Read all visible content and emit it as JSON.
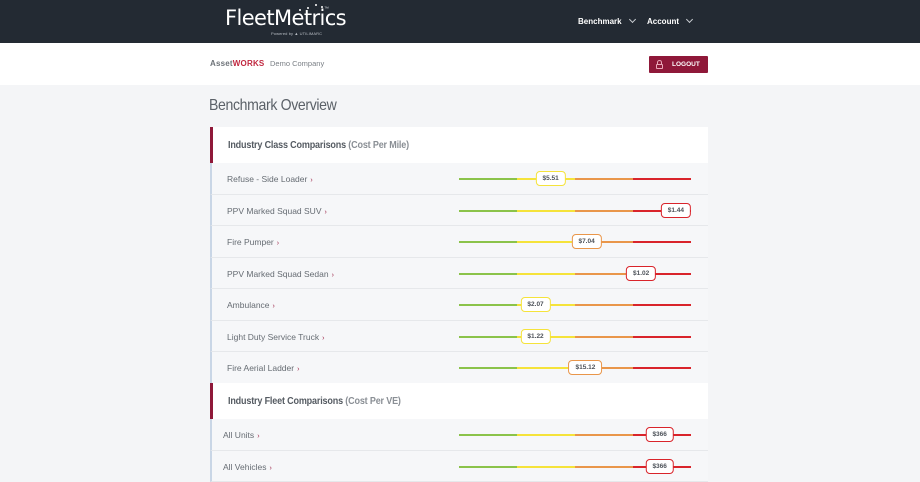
{
  "header": {
    "brand_name": "FleetMetrics",
    "brand_tm": "™",
    "brand_powered_by": "Powered by ▲ UTILIMARC",
    "nav": [
      {
        "label": "Benchmark"
      },
      {
        "label": "Account"
      }
    ]
  },
  "subheader": {
    "logo_asset": "Asset",
    "logo_works": "WORKS",
    "company": "Demo Company",
    "logout_label": "LOGOUT"
  },
  "page": {
    "title": "Benchmark Overview"
  },
  "scale_colors": {
    "green": "#8bc34a",
    "yellow": "#f5e33b",
    "orange": "#e9964a",
    "red": "#d9242b"
  },
  "sections": [
    {
      "title": "Industry Class Comparisons",
      "subtitle": "(Cost Per Mile)",
      "rows": [
        {
          "label": "Refuse - Side Loader",
          "value": "$5.51",
          "position_pct": 39.5,
          "band": "yellow"
        },
        {
          "label": "PPV Marked Squad SUV",
          "value": "$1.44",
          "position_pct": 93.5,
          "band": "red"
        },
        {
          "label": "Fire Pumper",
          "value": "$7.04",
          "position_pct": 55,
          "band": "orange"
        },
        {
          "label": "PPV Marked Squad Sedan",
          "value": "$1.02",
          "position_pct": 78.5,
          "band": "red"
        },
        {
          "label": "Ambulance",
          "value": "$2.07",
          "position_pct": 33,
          "band": "yellow"
        },
        {
          "label": "Light Duty Service Truck",
          "value": "$1.22",
          "position_pct": 33,
          "band": "yellow"
        },
        {
          "label": "Fire Aerial Ladder",
          "value": "$15.12",
          "position_pct": 54.5,
          "band": "orange"
        }
      ]
    },
    {
      "title": "Industry Fleet Comparisons",
      "subtitle": "(Cost Per VE)",
      "rows": [
        {
          "label": "All Units",
          "value": "$366",
          "position_pct": 86.5,
          "band": "red"
        },
        {
          "label": "All Vehicles",
          "value": "$366",
          "position_pct": 86.5,
          "band": "red"
        }
      ]
    }
  ]
}
